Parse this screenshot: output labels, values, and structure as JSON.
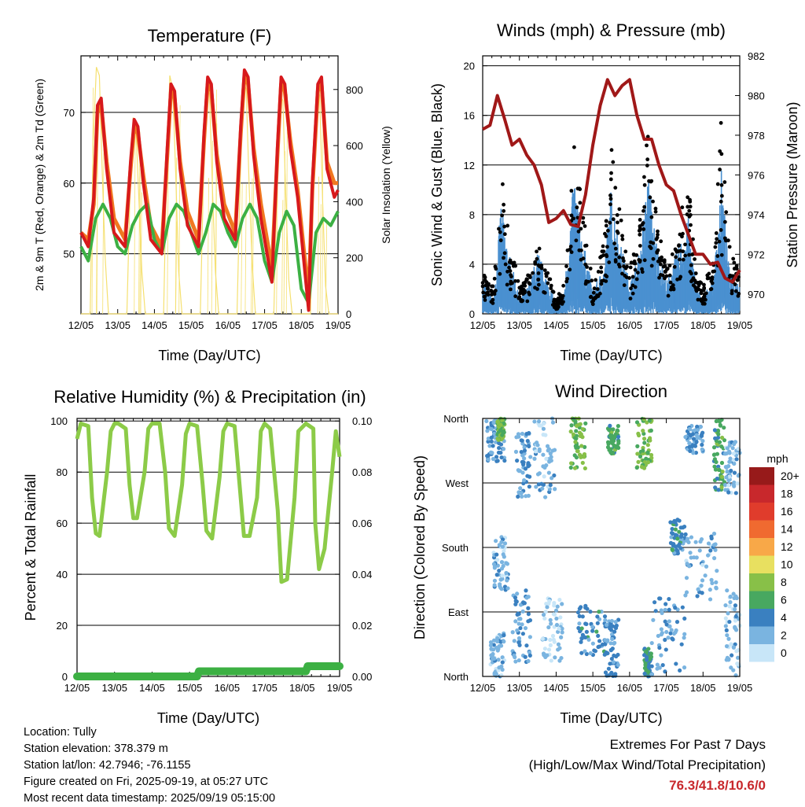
{
  "info": {
    "location": "Location: Tully",
    "elevation": "Station elevation: 378.379 m",
    "latlon": "Station lat/lon: 42.7946; -76.1155",
    "created": "Figure created on Fri, 2025-09-19, at 05:27 UTC",
    "recent": "Most recent data timestamp: 2025/09/19 05:15:00"
  },
  "extremes": {
    "title": "Extremes For Past 7 Days",
    "subtitle": "(High/Low/Max Wind/Total Precipitation)",
    "values": "76.3/41.8/10.6/0"
  },
  "colors": {
    "t2m": "#d7191c",
    "t9m": "#f07820",
    "td": "#3cb043",
    "solar": "#f5e070",
    "gust": "#000000",
    "wind": "#4a90d0",
    "pressure": "#a01818",
    "rh": "#8ccb48",
    "precip": "#3cb043"
  },
  "chart_data": [
    {
      "id": "temperature",
      "type": "line",
      "title": "Temperature (F)",
      "xlabel": "Time (Day/UTC)",
      "ylabel": "2m & 9m T (Red, Orange) & 2m Td (Green)",
      "y2label": "Solar Insolation (Yellow)",
      "x_ticks": [
        "12/05",
        "13/05",
        "14/05",
        "15/05",
        "16/05",
        "17/05",
        "18/05",
        "19/05"
      ],
      "ylim": [
        41.5,
        78
      ],
      "yticks": [
        50,
        60,
        70
      ],
      "y2lim": [
        0,
        920
      ],
      "y2ticks": [
        0,
        200,
        400,
        600,
        800
      ],
      "grid": true,
      "series": [
        {
          "key": "t2m",
          "x": [
            0,
            0.2,
            0.35,
            0.45,
            0.55,
            0.7,
            0.9,
            1.2,
            1.35,
            1.45,
            1.55,
            1.7,
            1.9,
            2.2,
            2.35,
            2.45,
            2.55,
            2.7,
            2.9,
            3.2,
            3.35,
            3.45,
            3.55,
            3.7,
            3.9,
            4.2,
            4.35,
            4.45,
            4.55,
            4.7,
            4.9,
            5.2,
            5.35,
            5.45,
            5.55,
            5.7,
            5.9,
            6.2,
            6.3,
            6.45,
            6.55,
            6.7,
            6.9,
            7.0
          ],
          "y": [
            53,
            51,
            58,
            71,
            72,
            62,
            53,
            51,
            63,
            69,
            68,
            60,
            52,
            50,
            65,
            74,
            73,
            62,
            54,
            51,
            67,
            75,
            74,
            63,
            55,
            52,
            68,
            76,
            75,
            64,
            55,
            46,
            65,
            75,
            74,
            65,
            58,
            42,
            60,
            74,
            75,
            62,
            58,
            59
          ]
        },
        {
          "key": "t9m",
          "x": [
            0,
            0.2,
            0.35,
            0.45,
            0.55,
            0.7,
            0.9,
            1.2,
            1.35,
            1.45,
            1.55,
            1.7,
            1.9,
            2.2,
            2.35,
            2.45,
            2.55,
            2.7,
            2.9,
            3.2,
            3.35,
            3.45,
            3.55,
            3.7,
            3.9,
            4.2,
            4.35,
            4.45,
            4.55,
            4.7,
            4.9,
            5.2,
            5.35,
            5.45,
            5.55,
            5.7,
            5.9,
            6.2,
            6.3,
            6.45,
            6.55,
            6.7,
            6.9,
            7.0
          ],
          "y": [
            53,
            52,
            57,
            70,
            71,
            63,
            55,
            52,
            62,
            68,
            67,
            61,
            54,
            51,
            64,
            73,
            72,
            63,
            56,
            52,
            66,
            74,
            73,
            64,
            57,
            53,
            67,
            75,
            74,
            65,
            57,
            48,
            64,
            74,
            73,
            66,
            59,
            44,
            59,
            73,
            74,
            63,
            60,
            60
          ]
        },
        {
          "key": "td",
          "x": [
            0,
            0.2,
            0.4,
            0.6,
            0.8,
            1.0,
            1.2,
            1.4,
            1.6,
            1.8,
            2.0,
            2.2,
            2.4,
            2.6,
            2.8,
            3.0,
            3.2,
            3.4,
            3.6,
            3.8,
            4.0,
            4.2,
            4.4,
            4.6,
            4.8,
            5.0,
            5.2,
            5.4,
            5.6,
            5.8,
            6.0,
            6.2,
            6.4,
            6.6,
            6.8,
            7.0
          ],
          "y": [
            51,
            49,
            55,
            57,
            55,
            51,
            50,
            54,
            56,
            57,
            52,
            50,
            55,
            57,
            56,
            53,
            50,
            53,
            57,
            56,
            53,
            51,
            55,
            57,
            55,
            49,
            46,
            53,
            56,
            54,
            45,
            43,
            53,
            55,
            54,
            56
          ]
        },
        {
          "key": "solar",
          "x": [
            0,
            0.25,
            0.33,
            0.42,
            0.5,
            0.58,
            0.66,
            0.75,
            1.25,
            1.33,
            1.42,
            1.5,
            1.58,
            1.66,
            1.75,
            2.25,
            2.33,
            2.42,
            2.5,
            2.58,
            2.66,
            2.75,
            3.25,
            3.33,
            3.42,
            3.5,
            3.58,
            3.66,
            3.75,
            4.25,
            4.33,
            4.42,
            4.5,
            4.58,
            4.66,
            4.75,
            5.25,
            5.33,
            5.42,
            5.5,
            5.58,
            5.66,
            5.75,
            6.25,
            6.33,
            6.42,
            6.5,
            6.58,
            6.66,
            6.75,
            7.0
          ],
          "y": [
            0,
            0,
            600,
            880,
            850,
            500,
            200,
            0,
            0,
            400,
            700,
            650,
            400,
            150,
            0,
            0,
            500,
            850,
            800,
            500,
            150,
            0,
            0,
            450,
            820,
            780,
            450,
            150,
            0,
            0,
            450,
            830,
            800,
            450,
            180,
            0,
            0,
            420,
            780,
            760,
            400,
            120,
            0,
            0,
            450,
            800,
            780,
            400,
            100,
            0,
            0
          ]
        }
      ]
    },
    {
      "id": "winds",
      "type": "scatter",
      "title": "Winds (mph) & Pressure (mb)",
      "xlabel": "Time (Day/UTC)",
      "ylabel": "Sonic Wind & Gust (Blue, Black)",
      "y2label": "Station Pressure (Maroon)",
      "x_ticks": [
        "12/05",
        "13/05",
        "14/05",
        "15/05",
        "16/05",
        "17/05",
        "18/05",
        "19/05"
      ],
      "ylim": [
        0,
        20.8
      ],
      "yticks": [
        0,
        4,
        8,
        12,
        16,
        20
      ],
      "y2lim": [
        969.0,
        982.0
      ],
      "y2ticks": [
        970,
        972,
        974,
        976,
        978,
        980,
        982
      ],
      "grid": true,
      "gust_envelope": {
        "x": [
          0,
          0.3,
          0.5,
          0.7,
          1.0,
          1.3,
          1.5,
          1.8,
          2.0,
          2.2,
          2.5,
          2.7,
          3.0,
          3.3,
          3.5,
          3.7,
          4.0,
          4.3,
          4.5,
          4.7,
          5.0,
          5.3,
          5.6,
          5.8,
          6.0,
          6.3,
          6.5,
          6.7,
          7.0
        ],
        "y": [
          3,
          2,
          10,
          6,
          2,
          3,
          5,
          3,
          1,
          2,
          13,
          8,
          2,
          5,
          12,
          8,
          3,
          7,
          13,
          8,
          3,
          6,
          10,
          3,
          2,
          4,
          14,
          5,
          3
        ]
      },
      "wind_envelope": {
        "x": [
          0,
          0.3,
          0.5,
          0.7,
          1.0,
          1.3,
          1.5,
          1.8,
          2.0,
          2.2,
          2.5,
          2.7,
          3.0,
          3.3,
          3.5,
          3.7,
          4.0,
          4.3,
          4.5,
          4.7,
          5.0,
          5.3,
          5.6,
          5.8,
          6.0,
          6.3,
          6.5,
          6.7,
          7.0
        ],
        "y": [
          2,
          1,
          7,
          4,
          1,
          2,
          4,
          2,
          0.5,
          1,
          9,
          5,
          1.5,
          3,
          8,
          5,
          2,
          4,
          9,
          5,
          2,
          4,
          6,
          2,
          1,
          2.5,
          9,
          3,
          2
        ]
      },
      "pressure": {
        "x": [
          0,
          0.2,
          0.4,
          0.6,
          0.8,
          1.0,
          1.2,
          1.4,
          1.6,
          1.8,
          2.0,
          2.2,
          2.4,
          2.6,
          2.8,
          3.0,
          3.2,
          3.4,
          3.6,
          3.8,
          4.0,
          4.2,
          4.4,
          4.6,
          4.8,
          5.0,
          5.2,
          5.4,
          5.6,
          5.8,
          6.0,
          6.2,
          6.4,
          6.6,
          6.8,
          7.0
        ],
        "y": [
          978.3,
          978.5,
          980.0,
          978.8,
          977.5,
          977.8,
          977.0,
          976.5,
          975.5,
          973.6,
          973.8,
          974.2,
          973.5,
          973.4,
          975.0,
          977.5,
          979.5,
          980.8,
          980.0,
          980.5,
          980.8,
          979.0,
          977.8,
          977.8,
          976.5,
          975.5,
          975.2,
          974.0,
          973.0,
          972.0,
          972.0,
          971.5,
          971.6,
          970.8,
          970.6,
          971.2
        ]
      }
    },
    {
      "id": "humidity",
      "type": "line",
      "title": "Relative Humidity (%) & Precipitation (in)",
      "xlabel": "Time (Day/UTC)",
      "ylabel": "Percent & Total Rainfall",
      "x_ticks": [
        "12/05",
        "13/05",
        "14/05",
        "15/05",
        "16/05",
        "17/05",
        "18/05",
        "19/05"
      ],
      "ylim": [
        0,
        101
      ],
      "yticks": [
        0,
        20,
        40,
        60,
        80,
        100
      ],
      "y2lim": [
        0,
        0.101
      ],
      "y2ticks": [
        "0.00",
        "0.02",
        "0.04",
        "0.06",
        "0.08",
        "0.10"
      ],
      "grid": true,
      "series": [
        {
          "key": "rh",
          "x": [
            0,
            0.1,
            0.3,
            0.4,
            0.5,
            0.6,
            0.8,
            0.9,
            1.0,
            1.1,
            1.3,
            1.4,
            1.5,
            1.6,
            1.8,
            1.9,
            2.0,
            2.2,
            2.35,
            2.45,
            2.6,
            2.8,
            2.9,
            3.0,
            3.2,
            3.35,
            3.45,
            3.6,
            3.8,
            3.9,
            4.0,
            4.2,
            4.35,
            4.45,
            4.6,
            4.8,
            4.9,
            5.0,
            5.15,
            5.35,
            5.45,
            5.6,
            5.8,
            5.9,
            6.1,
            6.3,
            6.35,
            6.45,
            6.6,
            6.8,
            6.9,
            7.0
          ],
          "y": [
            93,
            99,
            98,
            70,
            56,
            55,
            80,
            96,
            99,
            99,
            97,
            75,
            62,
            62,
            80,
            97,
            99,
            99,
            80,
            58,
            55,
            75,
            95,
            99,
            98,
            75,
            57,
            54,
            78,
            96,
            99,
            98,
            72,
            55,
            55,
            70,
            96,
            99,
            97,
            65,
            37,
            38,
            70,
            96,
            99,
            97,
            60,
            42,
            50,
            80,
            96,
            86
          ]
        },
        {
          "key": "precip",
          "x": [
            0,
            3.2,
            3.25,
            6.1,
            6.15,
            7.0
          ],
          "y": [
            0,
            0,
            0.002,
            0.002,
            0.004,
            0.004
          ]
        }
      ]
    },
    {
      "id": "direction",
      "type": "scatter",
      "title": "Wind Direction",
      "xlabel": "Time (Day/UTC)",
      "ylabel": "Direction (Colored By Speed)",
      "x_ticks": [
        "12/05",
        "13/05",
        "14/05",
        "15/05",
        "16/05",
        "17/05",
        "18/05",
        "19/05"
      ],
      "yticks": [
        "North",
        "East",
        "South",
        "West",
        "North"
      ],
      "ylim": [
        0,
        360
      ],
      "grid": true,
      "legend": {
        "title": "mph",
        "labels": [
          "20+",
          "18",
          "16",
          "14",
          "12",
          "10",
          "8",
          "6",
          "4",
          "2",
          "0"
        ],
        "colors": [
          "#971a1a",
          "#c8282c",
          "#e03c2c",
          "#f06a30",
          "#f8a848",
          "#e8e060",
          "#88c048",
          "#48a860",
          "#3a80c0",
          "#7ab4e0",
          "#c8e6f8"
        ]
      },
      "clusters": [
        {
          "x": [
            0.2,
            0.6
          ],
          "y": [
            0,
            60
          ],
          "speed": 2
        },
        {
          "x": [
            0.1,
            0.6
          ],
          "y": [
            300,
            360
          ],
          "speed": 3
        },
        {
          "x": [
            0.4,
            0.6
          ],
          "y": [
            330,
            360
          ],
          "speed": 7
        },
        {
          "x": [
            0.3,
            0.7
          ],
          "y": [
            120,
            200
          ],
          "speed": 2
        },
        {
          "x": [
            0.8,
            1.3
          ],
          "y": [
            20,
            120
          ],
          "speed": 3
        },
        {
          "x": [
            0.9,
            1.3
          ],
          "y": [
            250,
            340
          ],
          "speed": 3
        },
        {
          "x": [
            1.6,
            2.2
          ],
          "y": [
            20,
            110
          ],
          "speed": 1
        },
        {
          "x": [
            1.4,
            2.0
          ],
          "y": [
            250,
            360
          ],
          "speed": 2
        },
        {
          "x": [
            2.4,
            2.8
          ],
          "y": [
            290,
            360
          ],
          "speed": 7
        },
        {
          "x": [
            2.6,
            3.4
          ],
          "y": [
            30,
            100
          ],
          "speed": 4
        },
        {
          "x": [
            3.3,
            3.7
          ],
          "y": [
            0,
            80
          ],
          "speed": 3
        },
        {
          "x": [
            3.4,
            3.7
          ],
          "y": [
            310,
            350
          ],
          "speed": 6
        },
        {
          "x": [
            4.2,
            4.6
          ],
          "y": [
            290,
            360
          ],
          "speed": 7
        },
        {
          "x": [
            4.4,
            4.6
          ],
          "y": [
            0,
            40
          ],
          "speed": 5
        },
        {
          "x": [
            4.6,
            5.5
          ],
          "y": [
            0,
            110
          ],
          "speed": 3
        },
        {
          "x": [
            5.1,
            5.5
          ],
          "y": [
            170,
            220
          ],
          "speed": 4
        },
        {
          "x": [
            5.5,
            6.4
          ],
          "y": [
            100,
            200
          ],
          "speed": 2
        },
        {
          "x": [
            5.5,
            6.0
          ],
          "y": [
            310,
            350
          ],
          "speed": 3
        },
        {
          "x": [
            6.3,
            6.6
          ],
          "y": [
            260,
            360
          ],
          "speed": 6
        },
        {
          "x": [
            6.6,
            7.0
          ],
          "y": [
            0,
            120
          ],
          "speed": 2
        },
        {
          "x": [
            6.6,
            7.0
          ],
          "y": [
            250,
            330
          ],
          "speed": 2
        }
      ]
    }
  ]
}
